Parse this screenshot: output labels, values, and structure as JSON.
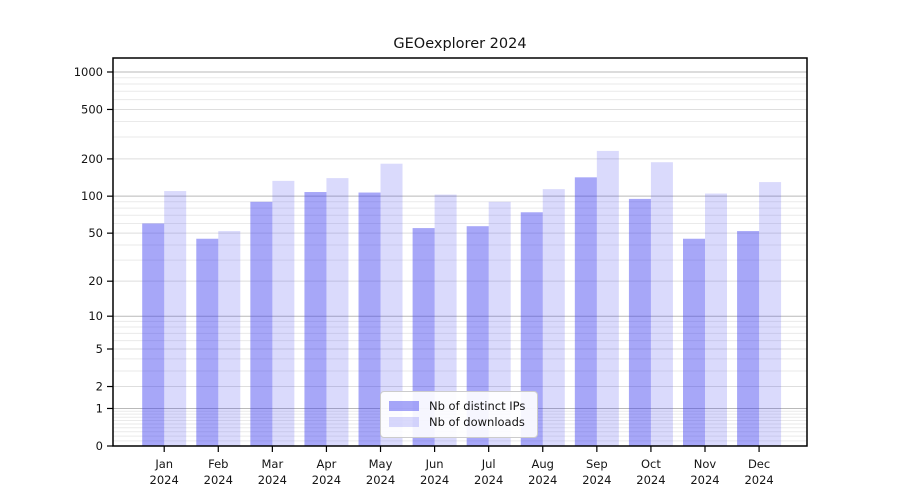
{
  "chart_data": {
    "type": "bar",
    "title": "GEOexplorer 2024",
    "categories": [
      "Jan",
      "Feb",
      "Mar",
      "Apr",
      "May",
      "Jun",
      "Jul",
      "Aug",
      "Sep",
      "Oct",
      "Nov",
      "Dec"
    ],
    "year_label": "2024",
    "series": [
      {
        "name": "Nb of distinct IPs",
        "color": "rgba(60,60,240,0.45)",
        "values": [
          60,
          45,
          90,
          108,
          107,
          55,
          57,
          74,
          142,
          95,
          45,
          52
        ]
      },
      {
        "name": "Nb of downloads",
        "color": "rgba(60,60,240,0.19)",
        "values": [
          110,
          52,
          133,
          140,
          183,
          103,
          90,
          114,
          232,
          188,
          105,
          130
        ]
      }
    ],
    "yscale": "log1p",
    "yticks": [
      0,
      1,
      2,
      5,
      10,
      20,
      50,
      100,
      200,
      500,
      1000
    ],
    "minor_yticks": [
      0.1,
      0.2,
      0.3,
      0.4,
      0.5,
      0.6,
      0.7,
      0.8,
      0.9,
      3,
      4,
      6,
      7,
      8,
      9,
      30,
      40,
      60,
      70,
      80,
      90,
      300,
      400,
      600,
      700,
      800,
      900
    ],
    "ylim": [
      0,
      1300
    ],
    "grid": true,
    "legend_position": "bottom-center",
    "colors": {
      "axis": "#000000",
      "text": "#141414",
      "grid_decade": "#b9b9b9",
      "grid_labeled": "#dedede",
      "grid_minor": "#eaeaea"
    }
  }
}
